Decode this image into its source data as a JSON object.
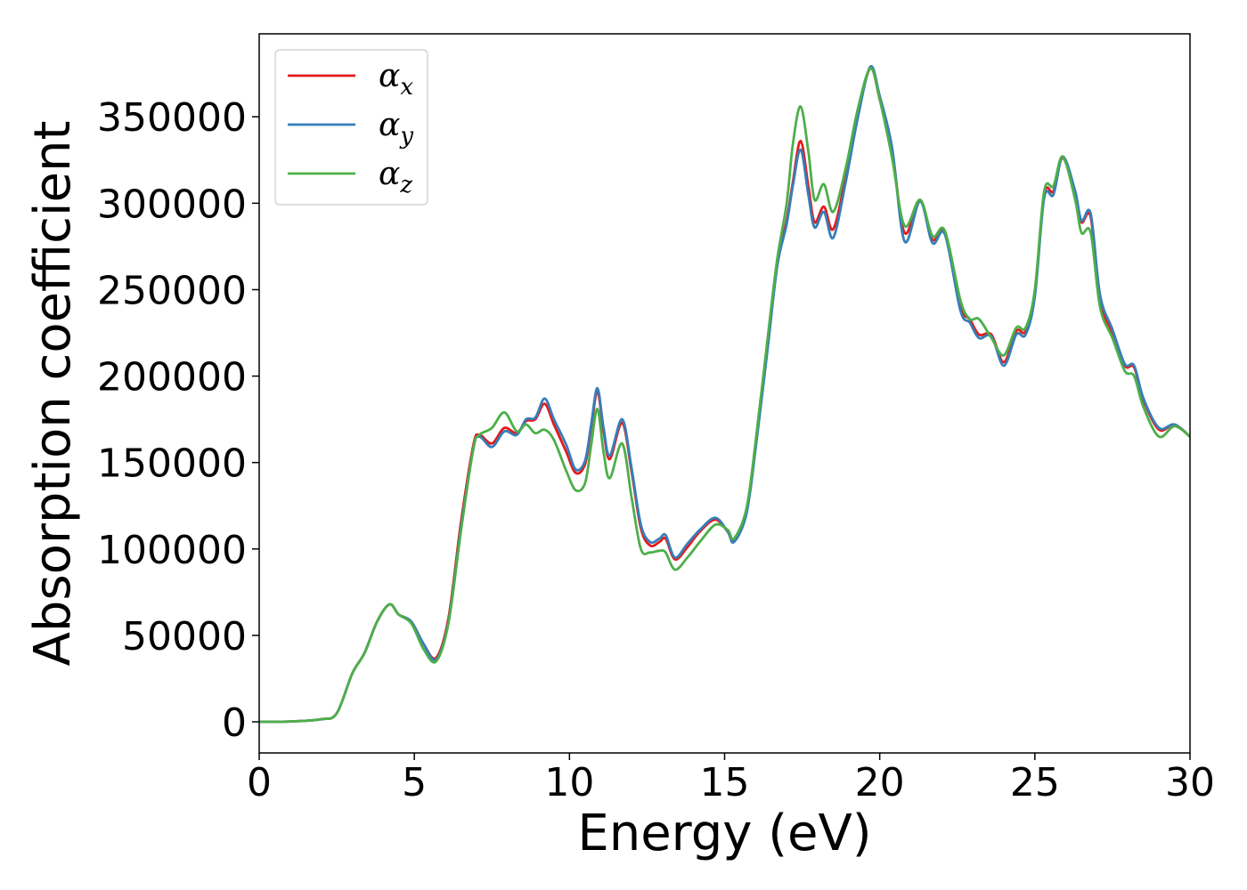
{
  "chart_data": {
    "type": "line",
    "title": "",
    "xlabel": "Energy (eV)",
    "ylabel": "Absorption coefficient",
    "xlim": [
      0,
      30
    ],
    "ylim": [
      -18000,
      398000
    ],
    "xticks": [
      0,
      5,
      10,
      15,
      20,
      25,
      30
    ],
    "yticks": [
      0,
      50000,
      100000,
      150000,
      200000,
      250000,
      300000,
      350000
    ],
    "grid": false,
    "legend": "top-left",
    "series": [
      {
        "name": "αx",
        "legend_base": "α",
        "legend_sub": "x",
        "color": "#e41a1c",
        "points": [
          [
            0,
            0
          ],
          [
            1,
            200
          ],
          [
            2,
            1500
          ],
          [
            2.5,
            5000
          ],
          [
            3,
            28000
          ],
          [
            3.4,
            40000
          ],
          [
            3.8,
            58000
          ],
          [
            4.2,
            68000
          ],
          [
            4.5,
            62000
          ],
          [
            4.9,
            58000
          ],
          [
            5.3,
            45000
          ],
          [
            5.7,
            37000
          ],
          [
            6.1,
            60000
          ],
          [
            6.5,
            115000
          ],
          [
            6.9,
            160000
          ],
          [
            7.1,
            166000
          ],
          [
            7.5,
            161000
          ],
          [
            7.9,
            170000
          ],
          [
            8.3,
            167000
          ],
          [
            8.6,
            174000
          ],
          [
            8.9,
            175000
          ],
          [
            9.2,
            184000
          ],
          [
            9.5,
            172000
          ],
          [
            9.9,
            156000
          ],
          [
            10.2,
            144000
          ],
          [
            10.5,
            149000
          ],
          [
            10.7,
            170000
          ],
          [
            10.9,
            191000
          ],
          [
            11.1,
            168000
          ],
          [
            11.3,
            152000
          ],
          [
            11.7,
            173000
          ],
          [
            12.0,
            145000
          ],
          [
            12.3,
            112000
          ],
          [
            12.6,
            102000
          ],
          [
            12.9,
            104000
          ],
          [
            13.1,
            106000
          ],
          [
            13.4,
            94000
          ],
          [
            13.8,
            101000
          ],
          [
            14.2,
            110000
          ],
          [
            14.7,
            117000
          ],
          [
            15.1,
            110000
          ],
          [
            15.3,
            105000
          ],
          [
            15.7,
            122000
          ],
          [
            16.0,
            160000
          ],
          [
            16.4,
            220000
          ],
          [
            16.7,
            265000
          ],
          [
            17.0,
            290000
          ],
          [
            17.2,
            312000
          ],
          [
            17.45,
            336000
          ],
          [
            17.7,
            310000
          ],
          [
            17.9,
            289000
          ],
          [
            18.2,
            298000
          ],
          [
            18.5,
            285000
          ],
          [
            18.9,
            315000
          ],
          [
            19.3,
            352000
          ],
          [
            19.7,
            378000
          ],
          [
            20.0,
            360000
          ],
          [
            20.4,
            330000
          ],
          [
            20.8,
            283000
          ],
          [
            21.3,
            302000
          ],
          [
            21.7,
            279000
          ],
          [
            22.1,
            283000
          ],
          [
            22.6,
            240000
          ],
          [
            22.9,
            233000
          ],
          [
            23.2,
            224000
          ],
          [
            23.6,
            224000
          ],
          [
            24.0,
            208000
          ],
          [
            24.4,
            226000
          ],
          [
            24.7,
            226000
          ],
          [
            25.0,
            248000
          ],
          [
            25.3,
            305000
          ],
          [
            25.6,
            307000
          ],
          [
            25.9,
            326000
          ],
          [
            26.3,
            305000
          ],
          [
            26.5,
            289000
          ],
          [
            26.8,
            292000
          ],
          [
            27.1,
            244000
          ],
          [
            27.5,
            225000
          ],
          [
            27.9,
            206000
          ],
          [
            28.2,
            205000
          ],
          [
            28.5,
            186000
          ],
          [
            29.0,
            169000
          ],
          [
            29.5,
            172000
          ],
          [
            30.0,
            165000
          ]
        ]
      },
      {
        "name": "αy",
        "legend_base": "α",
        "legend_sub": "y",
        "color": "#377eb8",
        "points": [
          [
            0,
            0
          ],
          [
            1,
            200
          ],
          [
            2,
            1500
          ],
          [
            2.5,
            5000
          ],
          [
            3,
            28000
          ],
          [
            3.4,
            40000
          ],
          [
            3.8,
            58000
          ],
          [
            4.2,
            68000
          ],
          [
            4.5,
            62000
          ],
          [
            4.9,
            58000
          ],
          [
            5.3,
            45000
          ],
          [
            5.7,
            36000
          ],
          [
            6.1,
            58000
          ],
          [
            6.5,
            112000
          ],
          [
            6.9,
            158000
          ],
          [
            7.1,
            165000
          ],
          [
            7.5,
            159000
          ],
          [
            7.9,
            168000
          ],
          [
            8.3,
            166000
          ],
          [
            8.6,
            175000
          ],
          [
            8.9,
            176000
          ],
          [
            9.2,
            187000
          ],
          [
            9.5,
            175000
          ],
          [
            9.9,
            160000
          ],
          [
            10.2,
            146000
          ],
          [
            10.5,
            151000
          ],
          [
            10.7,
            172000
          ],
          [
            10.9,
            193000
          ],
          [
            11.1,
            170000
          ],
          [
            11.3,
            154000
          ],
          [
            11.7,
            175000
          ],
          [
            12.0,
            147000
          ],
          [
            12.3,
            114000
          ],
          [
            12.6,
            104000
          ],
          [
            12.9,
            106000
          ],
          [
            13.1,
            108000
          ],
          [
            13.4,
            95000
          ],
          [
            13.8,
            103000
          ],
          [
            14.2,
            111000
          ],
          [
            14.7,
            118000
          ],
          [
            15.1,
            110000
          ],
          [
            15.3,
            104000
          ],
          [
            15.7,
            120000
          ],
          [
            16.0,
            158000
          ],
          [
            16.4,
            218000
          ],
          [
            16.7,
            264000
          ],
          [
            17.0,
            288000
          ],
          [
            17.2,
            310000
          ],
          [
            17.45,
            331000
          ],
          [
            17.7,
            305000
          ],
          [
            17.9,
            286000
          ],
          [
            18.2,
            295000
          ],
          [
            18.5,
            280000
          ],
          [
            18.9,
            312000
          ],
          [
            19.3,
            350000
          ],
          [
            19.7,
            379000
          ],
          [
            20.0,
            362000
          ],
          [
            20.4,
            332000
          ],
          [
            20.8,
            278000
          ],
          [
            21.3,
            301000
          ],
          [
            21.7,
            277000
          ],
          [
            22.1,
            282000
          ],
          [
            22.6,
            238000
          ],
          [
            22.9,
            231000
          ],
          [
            23.2,
            222000
          ],
          [
            23.6,
            223000
          ],
          [
            24.0,
            206000
          ],
          [
            24.4,
            224000
          ],
          [
            24.7,
            224000
          ],
          [
            25.0,
            246000
          ],
          [
            25.3,
            303000
          ],
          [
            25.6,
            305000
          ],
          [
            25.9,
            327000
          ],
          [
            26.3,
            307000
          ],
          [
            26.5,
            290000
          ],
          [
            26.8,
            294000
          ],
          [
            27.1,
            247000
          ],
          [
            27.5,
            227000
          ],
          [
            27.9,
            207000
          ],
          [
            28.2,
            206000
          ],
          [
            28.5,
            187000
          ],
          [
            29.0,
            170000
          ],
          [
            29.5,
            172000
          ],
          [
            30.0,
            165000
          ]
        ]
      },
      {
        "name": "αz",
        "legend_base": "α",
        "legend_sub": "z",
        "color": "#4daf4a",
        "points": [
          [
            0,
            0
          ],
          [
            1,
            200
          ],
          [
            2,
            1500
          ],
          [
            2.5,
            5000
          ],
          [
            3,
            28000
          ],
          [
            3.4,
            40000
          ],
          [
            3.8,
            58000
          ],
          [
            4.2,
            68000
          ],
          [
            4.5,
            62000
          ],
          [
            4.9,
            57000
          ],
          [
            5.3,
            42000
          ],
          [
            5.7,
            35000
          ],
          [
            6.1,
            57000
          ],
          [
            6.5,
            110000
          ],
          [
            6.9,
            158000
          ],
          [
            7.1,
            166000
          ],
          [
            7.5,
            170000
          ],
          [
            7.9,
            179000
          ],
          [
            8.3,
            168000
          ],
          [
            8.6,
            172000
          ],
          [
            8.9,
            167000
          ],
          [
            9.2,
            169000
          ],
          [
            9.5,
            163000
          ],
          [
            9.9,
            145000
          ],
          [
            10.2,
            134000
          ],
          [
            10.5,
            138000
          ],
          [
            10.7,
            160000
          ],
          [
            10.9,
            181000
          ],
          [
            11.1,
            156000
          ],
          [
            11.3,
            141000
          ],
          [
            11.7,
            161000
          ],
          [
            12.0,
            130000
          ],
          [
            12.3,
            100000
          ],
          [
            12.6,
            98000
          ],
          [
            12.9,
            99000
          ],
          [
            13.1,
            98000
          ],
          [
            13.4,
            88000
          ],
          [
            13.8,
            95000
          ],
          [
            14.2,
            104000
          ],
          [
            14.7,
            114000
          ],
          [
            15.1,
            111000
          ],
          [
            15.3,
            106000
          ],
          [
            15.7,
            123000
          ],
          [
            16.0,
            162000
          ],
          [
            16.4,
            224000
          ],
          [
            16.7,
            268000
          ],
          [
            17.0,
            300000
          ],
          [
            17.2,
            334000
          ],
          [
            17.45,
            356000
          ],
          [
            17.7,
            330000
          ],
          [
            17.9,
            302000
          ],
          [
            18.2,
            311000
          ],
          [
            18.5,
            295000
          ],
          [
            18.9,
            320000
          ],
          [
            19.3,
            355000
          ],
          [
            19.7,
            378000
          ],
          [
            20.0,
            360000
          ],
          [
            20.4,
            326000
          ],
          [
            20.8,
            287000
          ],
          [
            21.3,
            302000
          ],
          [
            21.7,
            281000
          ],
          [
            22.1,
            284000
          ],
          [
            22.6,
            244000
          ],
          [
            22.9,
            233000
          ],
          [
            23.2,
            233000
          ],
          [
            23.6,
            222000
          ],
          [
            24.0,
            212000
          ],
          [
            24.4,
            228000
          ],
          [
            24.7,
            228000
          ],
          [
            25.0,
            250000
          ],
          [
            25.3,
            307000
          ],
          [
            25.6,
            310000
          ],
          [
            25.9,
            327000
          ],
          [
            26.3,
            302000
          ],
          [
            26.5,
            283000
          ],
          [
            26.8,
            283000
          ],
          [
            27.1,
            240000
          ],
          [
            27.5,
            222000
          ],
          [
            27.9,
            203000
          ],
          [
            28.2,
            200000
          ],
          [
            28.5,
            182000
          ],
          [
            29.0,
            165000
          ],
          [
            29.5,
            171000
          ],
          [
            30.0,
            165000
          ]
        ]
      }
    ]
  }
}
